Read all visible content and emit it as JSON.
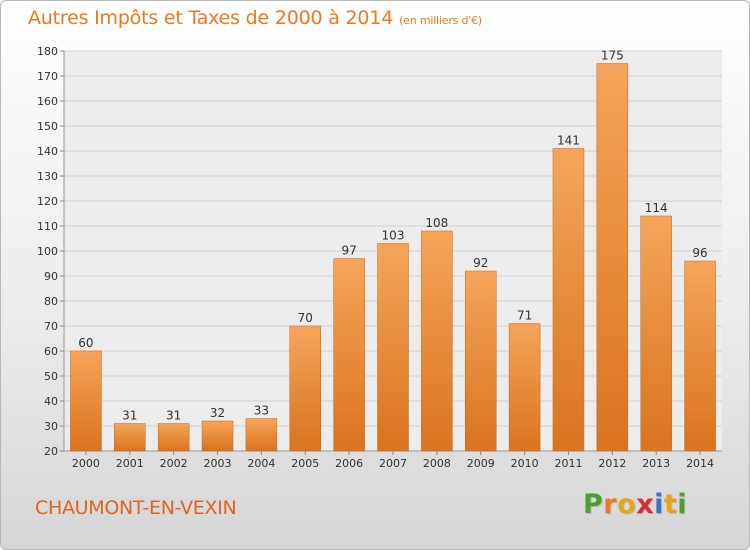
{
  "header": {
    "title": "Autres Impôts et Taxes de 2000 à 2014",
    "subtitle": "(en milliers d'€)"
  },
  "footer": {
    "commune": "CHAUMONT-EN-VEXIN",
    "logo_letters": [
      "P",
      "r",
      "o",
      "x",
      "i",
      "t",
      "i"
    ],
    "logo_colors": [
      "#4aa02c",
      "#f0761f",
      "#e8a317",
      "#d62f2f",
      "#3b73c5",
      "#e8a317",
      "#4aa02c"
    ]
  },
  "colors": {
    "bar_light": "#f5a55a",
    "bar_dark": "#d9731f",
    "grid": "#cfcfcf",
    "axis_text": "#333333"
  },
  "chart_data": {
    "type": "bar",
    "title": "Autres Impôts et Taxes de 2000 à 2014",
    "subtitle": "(en milliers d'€)",
    "xlabel": "",
    "ylabel": "",
    "ylim": [
      20,
      180
    ],
    "yticks": [
      20,
      30,
      40,
      50,
      60,
      70,
      80,
      90,
      100,
      110,
      120,
      130,
      140,
      150,
      160,
      170,
      180
    ],
    "grid": true,
    "categories": [
      "2000",
      "2001",
      "2002",
      "2003",
      "2004",
      "2005",
      "2006",
      "2007",
      "2008",
      "2009",
      "2010",
      "2011",
      "2012",
      "2013",
      "2014"
    ],
    "values": [
      60,
      31,
      31,
      32,
      33,
      70,
      97,
      103,
      108,
      92,
      71,
      141,
      175,
      114,
      96
    ]
  }
}
